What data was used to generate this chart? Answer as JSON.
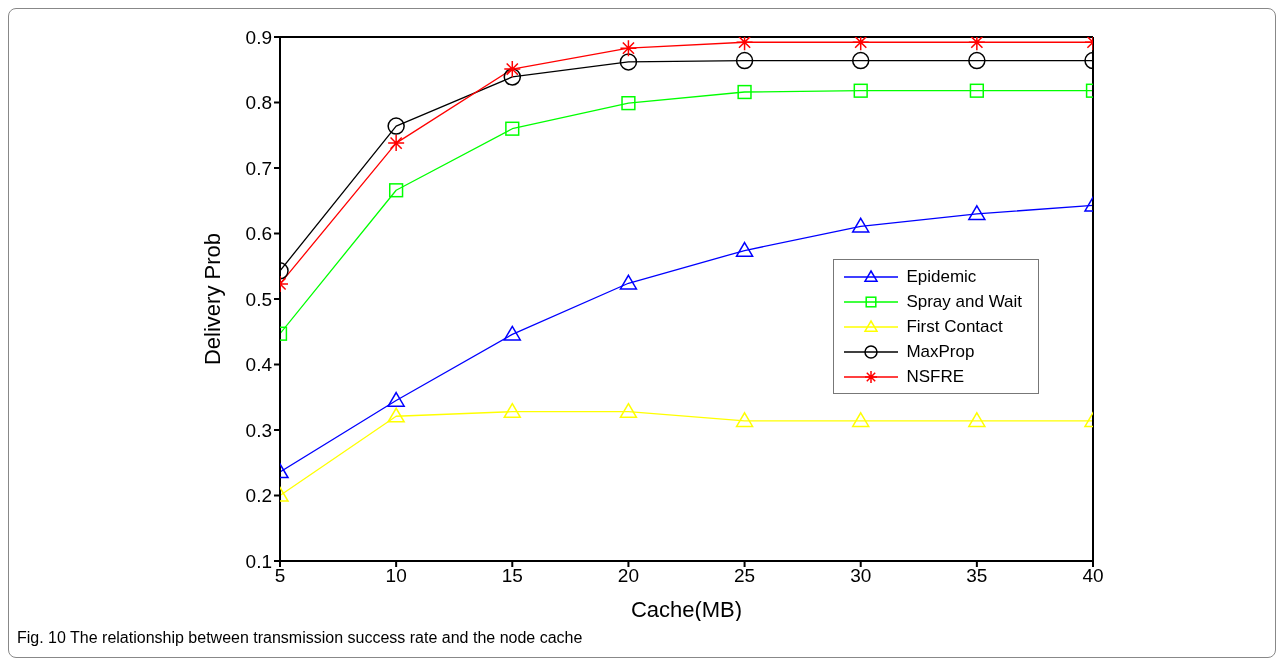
{
  "chart_data": {
    "type": "line",
    "xlabel": "Cache(MB)",
    "ylabel": "Delivery Prob",
    "annotations": [
      "Fig. 10 The relationship between transmission success rate and the node cache"
    ],
    "x": [
      5,
      10,
      15,
      20,
      25,
      30,
      35,
      40
    ],
    "xlim": [
      5,
      40
    ],
    "xticks": [
      5,
      10,
      15,
      20,
      25,
      30,
      35,
      40
    ],
    "ylim": [
      0.1,
      0.9
    ],
    "yticks": [
      0.1,
      0.2,
      0.3,
      0.4,
      0.5,
      0.6,
      0.7,
      0.8,
      0.9
    ],
    "grid": false,
    "legend": "right",
    "line_style": "solid",
    "series": [
      {
        "name": "Epidemic",
        "color": "#0000ff",
        "marker": "triangle",
        "values": [
          0.236,
          0.345,
          0.446,
          0.524,
          0.574,
          0.611,
          0.63,
          0.643
        ]
      },
      {
        "name": "Spray and Wait",
        "color": "#00ff00",
        "marker": "square",
        "values": [
          0.447,
          0.666,
          0.76,
          0.799,
          0.816,
          0.818,
          0.818,
          0.818
        ]
      },
      {
        "name": "First Contact",
        "color": "#ffff00",
        "marker": "triangle",
        "values": [
          0.2,
          0.321,
          0.328,
          0.328,
          0.314,
          0.314,
          0.314,
          0.314
        ]
      },
      {
        "name": "MaxProp",
        "color": "#000000",
        "marker": "circle",
        "values": [
          0.543,
          0.764,
          0.839,
          0.862,
          0.864,
          0.864,
          0.864,
          0.864
        ]
      },
      {
        "name": "NSFRE",
        "color": "#ff0000",
        "marker": "cross",
        "values": [
          0.523,
          0.738,
          0.851,
          0.883,
          0.892,
          0.892,
          0.892,
          0.892
        ]
      }
    ]
  }
}
